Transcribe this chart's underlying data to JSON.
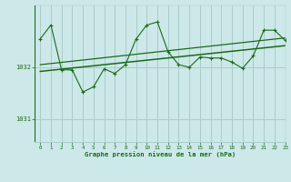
{
  "title": "Graphe pression niveau de la mer (hPa)",
  "background_color": "#cce8e8",
  "grid_color": "#aacccc",
  "line_color": "#1a6b1a",
  "text_color": "#1a6b1a",
  "xlim": [
    -0.5,
    23
  ],
  "ylim": [
    1030.55,
    1033.2
  ],
  "yticks": [
    1031,
    1032
  ],
  "xticks": [
    0,
    1,
    2,
    3,
    4,
    5,
    6,
    7,
    8,
    9,
    10,
    11,
    12,
    13,
    14,
    15,
    16,
    17,
    18,
    19,
    20,
    21,
    22,
    23
  ],
  "hours": [
    0,
    1,
    2,
    3,
    4,
    5,
    6,
    7,
    8,
    9,
    10,
    11,
    12,
    13,
    14,
    15,
    16,
    17,
    18,
    19,
    20,
    21,
    22,
    23
  ],
  "pressure": [
    1032.55,
    1032.82,
    1031.95,
    1031.95,
    1031.52,
    1031.62,
    1031.97,
    1031.88,
    1032.05,
    1032.55,
    1032.82,
    1032.88,
    1032.3,
    1032.05,
    1032.0,
    1032.2,
    1032.18,
    1032.18,
    1032.1,
    1031.98,
    1032.22,
    1032.72,
    1032.72,
    1032.52
  ],
  "trend1_x": [
    0,
    23
  ],
  "trend1_y": [
    1031.92,
    1032.42
  ],
  "trend2_x": [
    0,
    23
  ],
  "trend2_y": [
    1032.05,
    1032.57
  ]
}
